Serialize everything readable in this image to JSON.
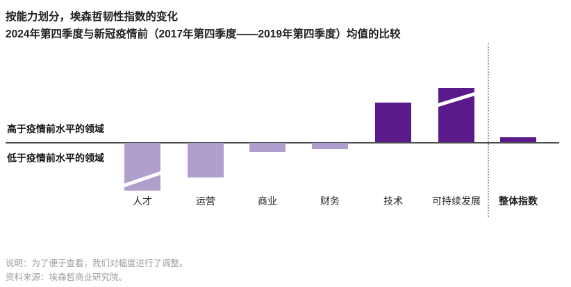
{
  "title": {
    "line1": "按能力划分，埃森哲韧性指数的变化",
    "line2": "2024年第四季度与新冠疫情前（2017年第四季度——2019年第四季度）均值的比较"
  },
  "axis": {
    "above_label": "高于疫情前水平的领域",
    "below_label": "低于疫情前水平的领域"
  },
  "footnotes": {
    "note": "说明：为了便于查看，我们对幅度进行了调整。",
    "source": "资料来源：埃森哲商业研究院。"
  },
  "colors": {
    "dark_purple": "#5a1a8c",
    "light_purple": "#b09ecd",
    "axis_line": "#4d4d4d",
    "note_gray": "#9e9e9e",
    "separator_gray": "#9a9a9a"
  },
  "chart_data": {
    "type": "bar",
    "title": "按能力划分，埃森哲韧性指数的变化",
    "subtitle": "2024年第四季度与新冠疫情前（2017年第四季度——2019年第四季度）均值的比较",
    "categories": [
      "人才",
      "运营",
      "商业",
      "财务",
      "技术",
      "可持续发展",
      "整体指数"
    ],
    "category_slugs": [
      "talent",
      "operations",
      "commerce",
      "finance",
      "technology",
      "sustainability",
      "overall-index"
    ],
    "values": [
      -69,
      -50,
      -13,
      -9,
      57,
      78,
      7
    ],
    "value_units": "relative drawn magnitude (no numeric axis shown; per the note, amplitudes were adjusted for readability)",
    "positive_region_label": "高于疫情前水平的领域",
    "negative_region_label": "低于疫情前水平的领域",
    "bar_palette": [
      "light",
      "light",
      "light",
      "light",
      "dark",
      "dark",
      "dark"
    ],
    "broken_bars": [
      true,
      false,
      false,
      false,
      false,
      true,
      false
    ],
    "emphasized_category": "整体指数",
    "separator_before_category": "整体指数",
    "legend": "none",
    "gridlines": false
  }
}
